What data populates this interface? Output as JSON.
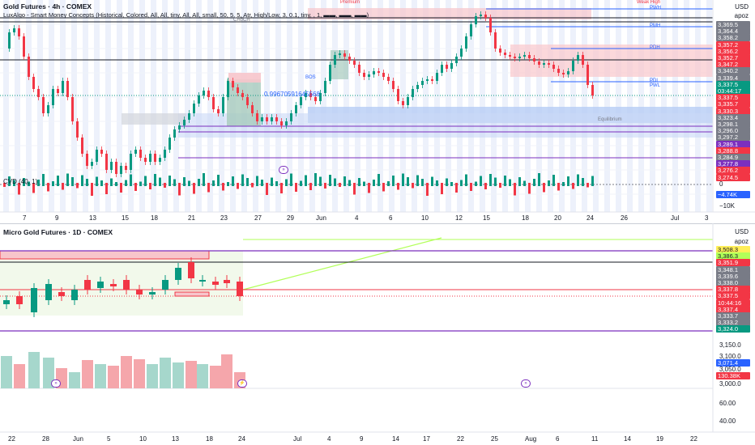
{
  "top": {
    "title": "Gold Futures · 4h · COMEX",
    "indicator": "LuxAlgo - Smart Money Concepts (Historical, Colored, All, All, tiny, All, All, small, 50, 5, 5, Atr, High/Low, 3, 0.1, tiny, , 1, ▬▬, ▬▬, ▬▬)",
    "currency": "USD",
    "unit": "apoz",
    "cvd_label": "CVD (40, 1)",
    "cvd_zero": "0",
    "cvd_value": "−4.74K",
    "cvd_min": "−10K",
    "overlay_text": "0.99670591645568",
    "level_labels": [
      "PWH",
      "PMH",
      "PDH",
      "PDL",
      "PWL",
      "Premium",
      "Weak High",
      "Equilibrium",
      "CHoCH",
      "BOS"
    ],
    "price_labels": [
      {
        "text": "3,369.5",
        "color": "#787b86"
      },
      {
        "text": "3,364.4",
        "color": "#787b86"
      },
      {
        "text": "3,358.2",
        "color": "#787b86"
      },
      {
        "text": "3,357.2",
        "color": "#f23645"
      },
      {
        "text": "3,356.2",
        "color": "#f23645"
      },
      {
        "text": "3,352.7",
        "color": "#f23645"
      },
      {
        "text": "3,347.2",
        "color": "#f23645"
      },
      {
        "text": "3,340.2",
        "color": "#787b86"
      },
      {
        "text": "3,339.4",
        "color": "#787b86"
      },
      {
        "text": "3,337.5",
        "color": "#089981"
      },
      {
        "text": "03:44:17",
        "color": "#089981"
      },
      {
        "text": "3,337.5",
        "color": "#f23645"
      },
      {
        "text": "3,335.7",
        "color": "#f23645"
      },
      {
        "text": "3,330.3",
        "color": "#f23645"
      },
      {
        "text": "3,323.4",
        "color": "#787b86"
      },
      {
        "text": "3,298.1",
        "color": "#787b86"
      },
      {
        "text": "3,296.0",
        "color": "#787b86"
      },
      {
        "text": "3,297.2",
        "color": "#787b86"
      },
      {
        "text": "3,289.1",
        "color": "#7b2fbe"
      },
      {
        "text": "3,288.8",
        "color": "#f23645"
      },
      {
        "text": "3,284.9",
        "color": "#787b86"
      },
      {
        "text": "3,277.8",
        "color": "#7b2fbe"
      },
      {
        "text": "3,276.2",
        "color": "#f23645"
      },
      {
        "text": "3,274.5",
        "color": "#f23645"
      }
    ],
    "dates": [
      "7",
      "9",
      "13",
      "15",
      "18",
      "21",
      "23",
      "27",
      "29",
      "Jun",
      "4",
      "6",
      "10",
      "12",
      "15",
      "18",
      "20",
      "24",
      "26",
      "Jul",
      "3"
    ]
  },
  "bottom": {
    "title": "Micro Gold Futures · 1D · COMEX",
    "currency": "USD",
    "unit": "apoz",
    "price_labels": [
      {
        "text": "3,508.3",
        "color": "#ffee58",
        "dark": true
      },
      {
        "text": "3,386.3",
        "color": "#b2ff59",
        "dark": true
      },
      {
        "text": "3,351.9",
        "color": "#f23645"
      },
      {
        "text": "3,348.1",
        "color": "#787b86"
      },
      {
        "text": "3,339.6",
        "color": "#787b86"
      },
      {
        "text": "3,338.0",
        "color": "#787b86"
      },
      {
        "text": "3,337.8",
        "color": "#f23645"
      },
      {
        "text": "3,337.5",
        "color": "#f23645"
      },
      {
        "text": "10:44:16",
        "color": "#f23645"
      },
      {
        "text": "3,337.4",
        "color": "#f23645"
      },
      {
        "text": "3,333.7",
        "color": "#787b86"
      },
      {
        "text": "3,333.2",
        "color": "#787b86"
      },
      {
        "text": "3,324.0",
        "color": "#089981"
      }
    ],
    "scale": [
      "3,150.0",
      "3,100.0",
      "3,050.0",
      "3,000.0",
      "60.00",
      "40.00"
    ],
    "vol_labels": [
      {
        "text": "3,071.4",
        "color": "#2962ff"
      },
      {
        "text": "130.38K",
        "color": "#f23645"
      }
    ],
    "dates": [
      "22",
      "28",
      "Jun",
      "5",
      "10",
      "13",
      "18",
      "24",
      "Jul",
      "4",
      "9",
      "14",
      "17",
      "22",
      "25",
      "Aug",
      "6",
      "11",
      "14",
      "19",
      "22"
    ]
  }
}
